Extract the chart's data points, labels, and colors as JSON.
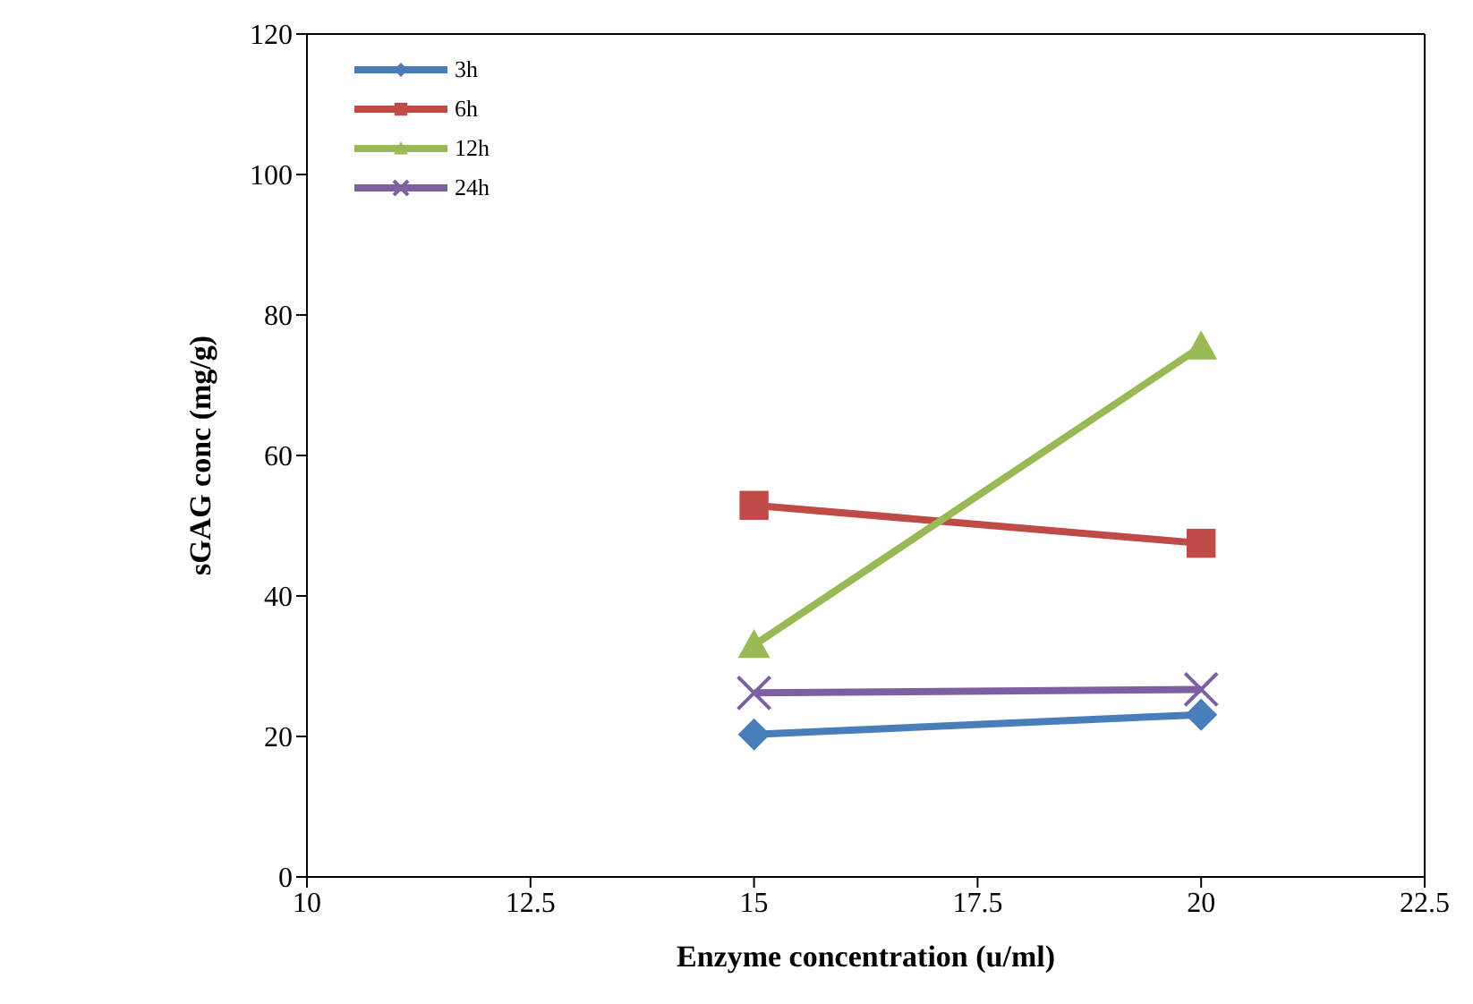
{
  "chart_data": {
    "type": "line",
    "xlabel": "Enzyme concentration (u/ml)",
    "ylabel": "sGAG conc (mg/g)",
    "x": [
      15,
      20
    ],
    "series": [
      {
        "name": "3h",
        "color": "#4a7ebb",
        "values": [
          20.3,
          23.1
        ],
        "marker": "diamond"
      },
      {
        "name": "6h",
        "color": "#be4b48",
        "values": [
          52.9,
          47.5
        ],
        "marker": "square"
      },
      {
        "name": "12h",
        "color": "#98b954",
        "values": [
          33.0,
          75.5
        ],
        "marker": "triangle"
      },
      {
        "name": "24h",
        "color": "#7d60a0",
        "values": [
          26.2,
          26.7
        ],
        "marker": "cross"
      }
    ],
    "xlim": [
      10,
      22.5
    ],
    "xticks": [
      10,
      12.5,
      15,
      17.5,
      20,
      22.5
    ],
    "ylim": [
      0,
      120
    ],
    "yticks": [
      0,
      20,
      40,
      60,
      80,
      100,
      120
    ],
    "legend": "top left",
    "line_style": "solid"
  }
}
